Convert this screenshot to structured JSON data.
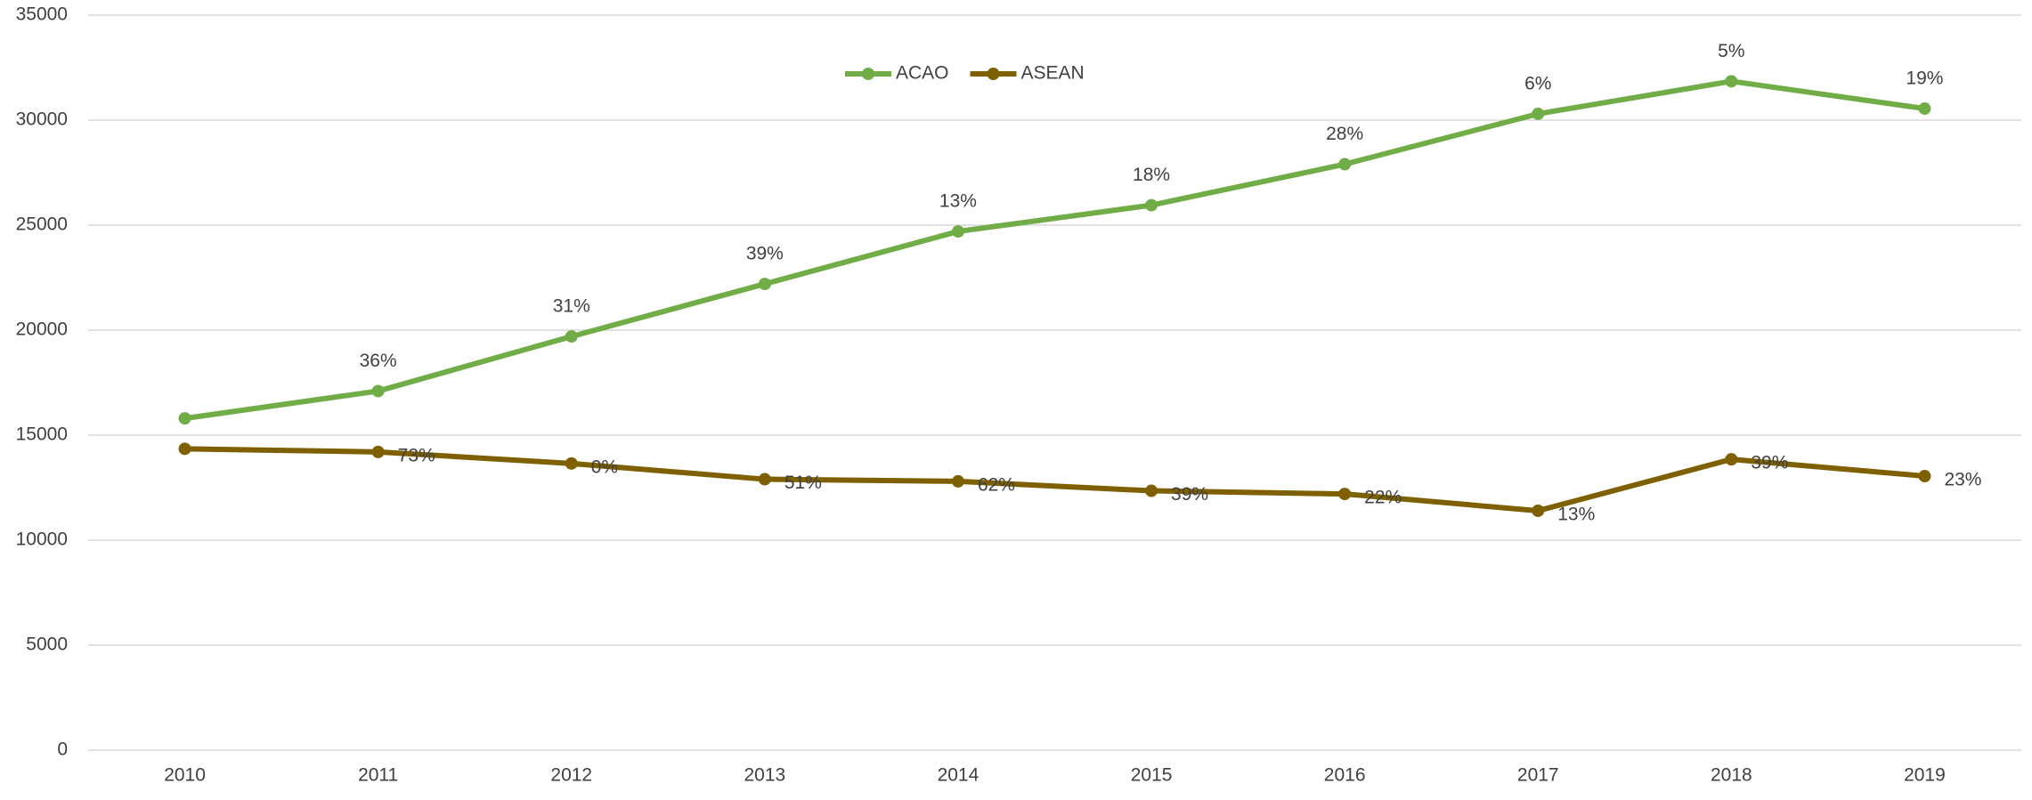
{
  "chart_data": {
    "type": "line",
    "categories": [
      "2010",
      "2011",
      "2012",
      "2013",
      "2014",
      "2015",
      "2016",
      "2017",
      "2018",
      "2019"
    ],
    "series": [
      {
        "name": "ACAO",
        "color": "#70ad47",
        "values": [
          15800,
          17100,
          19700,
          22200,
          24700,
          25950,
          27900,
          30300,
          31850,
          30550
        ],
        "point_labels": [
          null,
          "36%",
          "31%",
          "39%",
          "13%",
          "18%",
          "28%",
          "6%",
          "5%",
          "19%"
        ]
      },
      {
        "name": "ASEAN",
        "color": "#7f6000",
        "values": [
          14350,
          14200,
          13650,
          12900,
          12800,
          12350,
          12200,
          11400,
          13850,
          13050
        ],
        "point_labels": [
          null,
          "73%",
          "0%",
          "51%",
          "62%",
          "39%",
          "22%",
          "13%",
          "39%",
          "23%"
        ]
      }
    ],
    "ylim": [
      0,
      35000
    ],
    "yticks": [
      0,
      5000,
      10000,
      15000,
      20000,
      25000,
      30000,
      35000
    ],
    "grid": true,
    "legend": "top"
  }
}
